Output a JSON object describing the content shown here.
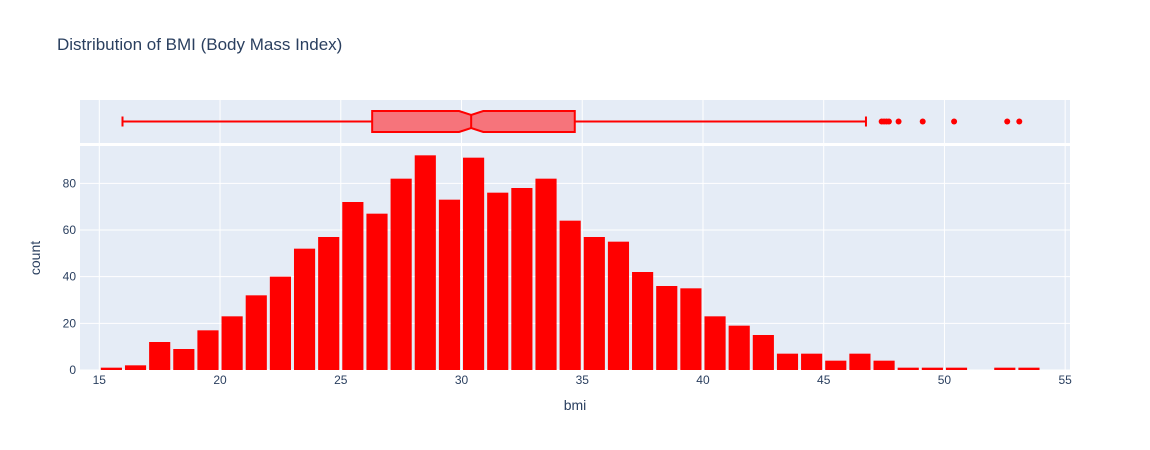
{
  "chart_data": {
    "type": "histogram",
    "title": "Distribution of BMI (Body Mass Index)",
    "xlabel": "bmi",
    "ylabel": "count",
    "xlim": [
      14.2,
      55.2
    ],
    "ylim": [
      0,
      96
    ],
    "x_ticks": [
      15,
      20,
      25,
      30,
      35,
      40,
      45,
      50,
      55
    ],
    "y_ticks": [
      0,
      20,
      40,
      60,
      80
    ],
    "bin_width": 1,
    "bins": [
      {
        "start": 15,
        "count": 1
      },
      {
        "start": 16,
        "count": 2
      },
      {
        "start": 17,
        "count": 12
      },
      {
        "start": 18,
        "count": 9
      },
      {
        "start": 19,
        "count": 17
      },
      {
        "start": 20,
        "count": 23
      },
      {
        "start": 21,
        "count": 32
      },
      {
        "start": 22,
        "count": 40
      },
      {
        "start": 23,
        "count": 52
      },
      {
        "start": 24,
        "count": 57
      },
      {
        "start": 25,
        "count": 72
      },
      {
        "start": 26,
        "count": 67
      },
      {
        "start": 27,
        "count": 82
      },
      {
        "start": 28,
        "count": 92
      },
      {
        "start": 29,
        "count": 73
      },
      {
        "start": 30,
        "count": 91
      },
      {
        "start": 31,
        "count": 76
      },
      {
        "start": 32,
        "count": 78
      },
      {
        "start": 33,
        "count": 82
      },
      {
        "start": 34,
        "count": 64
      },
      {
        "start": 35,
        "count": 57
      },
      {
        "start": 36,
        "count": 55
      },
      {
        "start": 37,
        "count": 42
      },
      {
        "start": 38,
        "count": 36
      },
      {
        "start": 39,
        "count": 35
      },
      {
        "start": 40,
        "count": 23
      },
      {
        "start": 41,
        "count": 19
      },
      {
        "start": 42,
        "count": 15
      },
      {
        "start": 43,
        "count": 7
      },
      {
        "start": 44,
        "count": 7
      },
      {
        "start": 45,
        "count": 4
      },
      {
        "start": 46,
        "count": 7
      },
      {
        "start": 47,
        "count": 4
      },
      {
        "start": 48,
        "count": 1
      },
      {
        "start": 49,
        "count": 1
      },
      {
        "start": 50,
        "count": 1
      },
      {
        "start": 52,
        "count": 1
      },
      {
        "start": 53,
        "count": 1
      }
    ],
    "marginal_box": {
      "lowerfence": 15.96,
      "q1": 26.3,
      "median": 30.4,
      "q3": 34.69,
      "upperfence": 46.75,
      "notch_low": 29.9,
      "notch_high": 30.9,
      "outliers": [
        47.4,
        47.5,
        47.6,
        47.7,
        48.1,
        49.1,
        50.4,
        52.6,
        53.1
      ]
    },
    "bar_color": "#ff0000",
    "box_fill": "#f6747b",
    "plot_bg": "#e5ecf6",
    "grid_color": "#ffffff",
    "text_color": "#2a3f5f"
  }
}
